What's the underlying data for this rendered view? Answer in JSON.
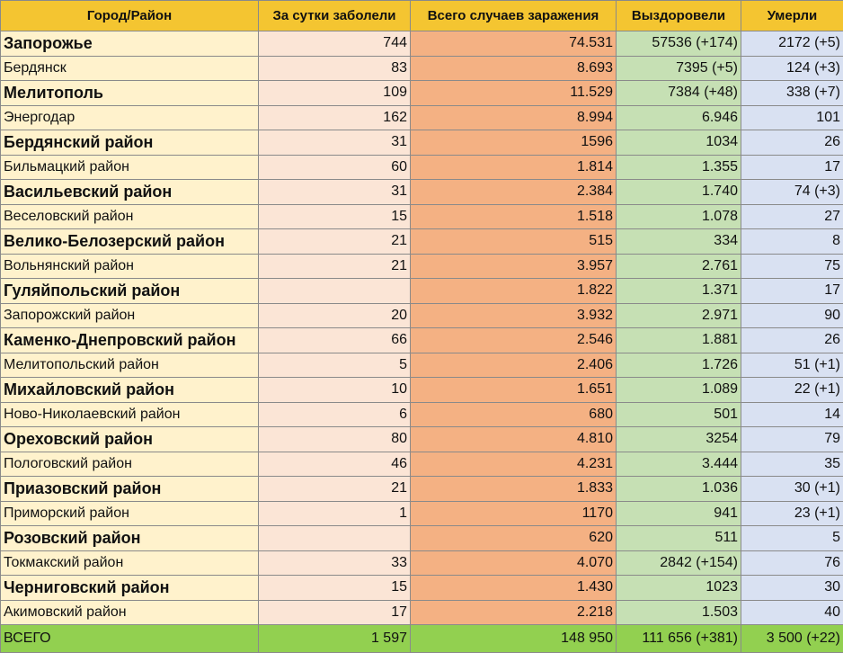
{
  "headers": [
    "Город/Район",
    "За сутки заболели",
    "Всего случаев заражения",
    "Выздоровели",
    "Умерли"
  ],
  "rows": [
    {
      "name": "Запорожье",
      "day": "744",
      "total": "74.531",
      "recovered": "57536 (+174)",
      "deaths": "2172 (+5)",
      "emphasis": true
    },
    {
      "name": "Бердянск",
      "day": "83",
      "total": "8.693",
      "recovered": "7395 (+5)",
      "deaths": "124 (+3)",
      "emphasis": false
    },
    {
      "name": "Мелитополь",
      "day": "109",
      "total": "11.529",
      "recovered": "7384 (+48)",
      "deaths": "338 (+7)",
      "emphasis": true
    },
    {
      "name": "Энергодар",
      "day": "162",
      "total": "8.994",
      "recovered": "6.946",
      "deaths": "101",
      "emphasis": false
    },
    {
      "name": "Бердянский район",
      "day": "31",
      "total": "1596",
      "recovered": "1034",
      "deaths": "26",
      "emphasis": true
    },
    {
      "name": "Бильмацкий район",
      "day": "60",
      "total": "1.814",
      "recovered": "1.355",
      "deaths": "17",
      "emphasis": false
    },
    {
      "name": "Васильевский район",
      "day": "31",
      "total": "2.384",
      "recovered": "1.740",
      "deaths": "74 (+3)",
      "emphasis": true
    },
    {
      "name": "Веселовский район",
      "day": "15",
      "total": "1.518",
      "recovered": "1.078",
      "deaths": "27",
      "emphasis": false
    },
    {
      "name": "Велико-Белозерский район",
      "day": "21",
      "total": "515",
      "recovered": "334",
      "deaths": "8",
      "emphasis": true
    },
    {
      "name": "Вольнянский район",
      "day": "21",
      "total": "3.957",
      "recovered": "2.761",
      "deaths": "75",
      "emphasis": false
    },
    {
      "name": "Гуляйпольский район",
      "day": "",
      "total": "1.822",
      "recovered": "1.371",
      "deaths": "17",
      "emphasis": true
    },
    {
      "name": "Запорожский район",
      "day": "20",
      "total": "3.932",
      "recovered": "2.971",
      "deaths": "90",
      "emphasis": false
    },
    {
      "name": "Каменко-Днепровский район",
      "day": "66",
      "total": "2.546",
      "recovered": "1.881",
      "deaths": "26",
      "emphasis": true
    },
    {
      "name": "Мелитопольский район",
      "day": "5",
      "total": "2.406",
      "recovered": "1.726",
      "deaths": "51 (+1)",
      "emphasis": false
    },
    {
      "name": "Михайловский район",
      "day": "10",
      "total": "1.651",
      "recovered": "1.089",
      "deaths": "22 (+1)",
      "emphasis": true
    },
    {
      "name": "Ново-Николаевский район",
      "day": "6",
      "total": "680",
      "recovered": "501",
      "deaths": "14",
      "emphasis": false
    },
    {
      "name": "Ореховский район",
      "day": "80",
      "total": "4.810",
      "recovered": "3254",
      "deaths": "79",
      "emphasis": true
    },
    {
      "name": "Пологовский район",
      "day": "46",
      "total": "4.231",
      "recovered": "3.444",
      "deaths": "35",
      "emphasis": false
    },
    {
      "name": "Приазовский район",
      "day": "21",
      "total": "1.833",
      "recovered": "1.036",
      "deaths": "30 (+1)",
      "emphasis": true
    },
    {
      "name": "Приморский район",
      "day": "1",
      "total": "1170",
      "recovered": "941",
      "deaths": "23 (+1)",
      "emphasis": false
    },
    {
      "name": "Розовский район",
      "day": "",
      "total": "620",
      "recovered": "511",
      "deaths": "5",
      "emphasis": true
    },
    {
      "name": "Токмакский район",
      "day": "33",
      "total": "4.070",
      "recovered": "2842 (+154)",
      "deaths": "76",
      "emphasis": false
    },
    {
      "name": "Черниговский район",
      "day": "15",
      "total": "1.430",
      "recovered": "1023",
      "deaths": "30",
      "emphasis": true
    },
    {
      "name": "Акимовский район",
      "day": "17",
      "total": "2.218",
      "recovered": "1.503",
      "deaths": "40",
      "emphasis": false
    }
  ],
  "totals": {
    "name": "ВСЕГО",
    "day": "1 597",
    "total": "148 950",
    "recovered": "111 656 (+381)",
    "deaths": "3 500 (+22)"
  },
  "colors": {
    "header": "#f4c531",
    "city": "#fff2cc",
    "day": "#fbe5d6",
    "total": "#f4b183",
    "recovered": "#c6e0b4",
    "deaths": "#d9e1f2",
    "summary": "#92d050"
  }
}
